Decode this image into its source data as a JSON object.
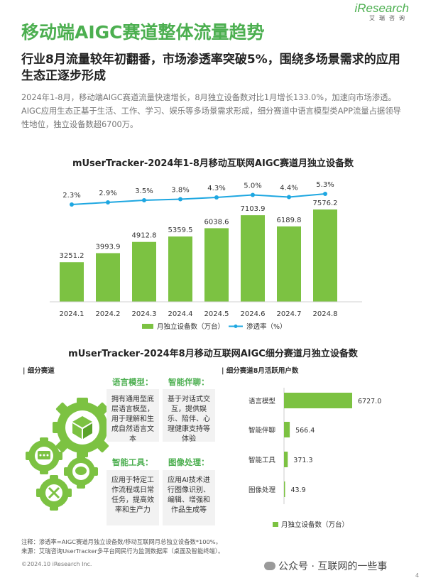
{
  "logo": {
    "brand": "iResearch",
    "sub": "艾瑞咨询"
  },
  "page_title": "移动端AIGC赛道整体流量趋势",
  "subtitle": "行业8月流量较年初翻番，市场渗透率突破5%，围绕多场景需求的应用生态正逐步形成",
  "summary": "2024年1-8月，移动端AIGC赛道流量快速增长，8月独立设备数对比1月增长133.0%，加速向市场渗透。AIGC应用生态正基于生活、工作、学习、娱乐等多场景需求形成，细分赛道中语言模型类APP流量占据领导性地位，独立设备数超6700万。",
  "chart1_title": "mUserTracker-2024年1-8月移动互联网AIGC赛道月独立设备数",
  "chart2_title": "mUserTracker-2024年8月移动互联网AIGC细分赛道月独立设备数",
  "colors": {
    "green": "#7cc242",
    "blue": "#1ea7e1",
    "title_green": "#4caf50"
  },
  "chart_data": [
    {
      "type": "bar",
      "title": "mUserTracker-2024年1-8月移动互联网AIGC赛道月独立设备数",
      "categories": [
        "2024.1",
        "2024.2",
        "2024.3",
        "2024.4",
        "2024.5",
        "2024.6",
        "2024.7",
        "2024.8"
      ],
      "series": [
        {
          "name": "月独立设备数（万台）",
          "type": "bar",
          "values": [
            3251.2,
            3993.9,
            4912.8,
            5359.5,
            6038.6,
            7103.9,
            6189.8,
            7576.2
          ],
          "labels": [
            "3251.2",
            "3993.9",
            "4912.8",
            "5359.5",
            "6038.6",
            "7103.9",
            "6189.8",
            "7576.2"
          ]
        },
        {
          "name": "渗透率（%）",
          "type": "line",
          "values": [
            2.3,
            2.9,
            3.5,
            3.8,
            4.3,
            5.0,
            4.4,
            5.3
          ],
          "labels": [
            "2.3%",
            "2.9%",
            "3.5%",
            "3.8%",
            "4.3%",
            "5.0%",
            "4.4%",
            "5.3%"
          ]
        }
      ],
      "legend": {
        "bar": "月独立设备数（万台）",
        "line": "渗透率（%）",
        "position": "bottom"
      }
    },
    {
      "type": "bar",
      "orientation": "horizontal",
      "title": "细分赛道8月活跃用户数",
      "categories": [
        "语言模型",
        "智能伴聊",
        "智能工具",
        "图像处理"
      ],
      "series": [
        {
          "name": "月独立设备数（万台）",
          "values": [
            6727.0,
            566.4,
            371.3,
            43.9
          ],
          "labels": [
            "6727.0",
            "566.4",
            "371.3",
            "43.9"
          ]
        }
      ],
      "legend": {
        "position": "bottom"
      }
    }
  ],
  "segments": {
    "label": "细分赛道",
    "items": [
      {
        "title": "语言模型：",
        "text": "拥有通用型底层语言模型，用于理解和生成自然语言文本"
      },
      {
        "title": "智能伴聊：",
        "text": "基于对话式交互，提供娱乐、陪伴、心理健康支持等体验"
      },
      {
        "title": "智能工具：",
        "text": "应用于特定工作流程或日常任务，提高效率和生产力"
      },
      {
        "title": "图像处理：",
        "text": "应用AI技术进行图像识别、编辑、增强和作品生成等"
      }
    ]
  },
  "active_users_label": "细分赛道8月活跃用户数",
  "notes": {
    "line1": "注释：渗透率=AIGC赛道月独立设备数/移动互联网月总独立设备数*100%。",
    "line2": "来源：艾瑞咨询UserTracker多平台网民行为监测数据库（桌面及智能终端）。"
  },
  "copyright": "©2024.10 iResearch Inc.",
  "watermark": "公众号 · 互联网的一些事",
  "page_number": "4"
}
